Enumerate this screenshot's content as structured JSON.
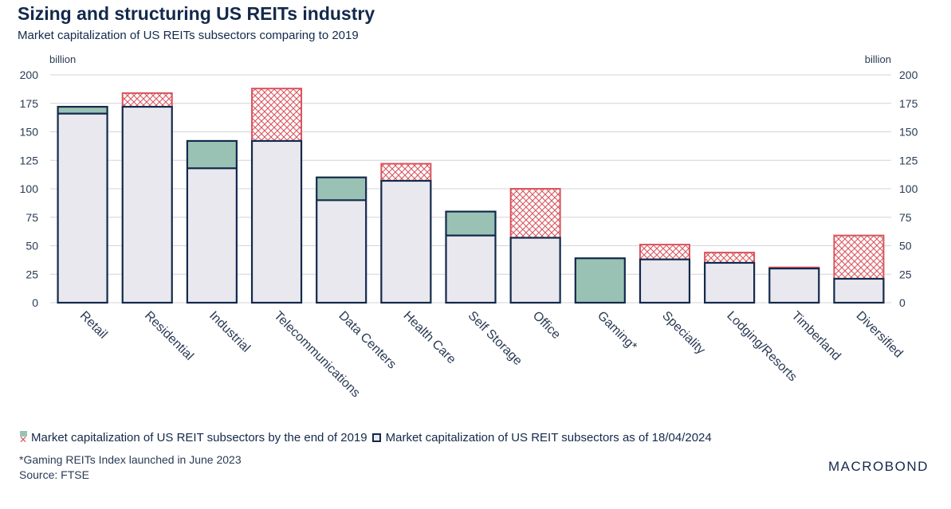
{
  "title": "Sizing and structuring US REITs industry",
  "subtitle": "Market capitalization of US REITs subsectors comparing to 2019",
  "colors": {
    "navy": "#13294b",
    "green": "#99c2b4",
    "light": "#e8e8ee",
    "red": "#d9545e"
  },
  "chart_data": {
    "type": "bar",
    "categories": [
      "Retail",
      "Residential",
      "Industrial",
      "Telecommunications",
      "Data Centers",
      "Health Care",
      "Self Storage",
      "Office",
      "Gaming*",
      "Speciality",
      "Lodging/Resorts",
      "Timberland",
      "Diversified"
    ],
    "series": [
      {
        "name": "Market capitalization of US REIT subsectors by the end of 2019",
        "values": [
          166,
          184,
          118,
          188,
          90,
          122,
          59,
          100,
          0,
          51,
          44,
          31,
          59
        ]
      },
      {
        "name": "Market capitalization of US REIT subsectors as of 18/04/2024",
        "values": [
          172,
          172,
          142,
          142,
          110,
          107,
          80,
          57,
          39,
          38,
          35,
          30,
          21
        ]
      }
    ],
    "ylim": [
      0,
      200
    ],
    "yticks": [
      "0",
      "25",
      "50",
      "75",
      "100",
      "125",
      "150",
      "175",
      "200"
    ],
    "ylabel_left": "billion",
    "ylabel_right": "billion"
  },
  "legend": {
    "item_2019": "Market capitalization of US REIT subsectors by the end of 2019",
    "item_2024": "Market capitalization of US REIT subsectors as of 18/04/2024"
  },
  "footnote": {
    "line1": "*Gaming REITs Index launched in June 2023",
    "line2": "Source: FTSE"
  },
  "logo": "MACROBOND"
}
